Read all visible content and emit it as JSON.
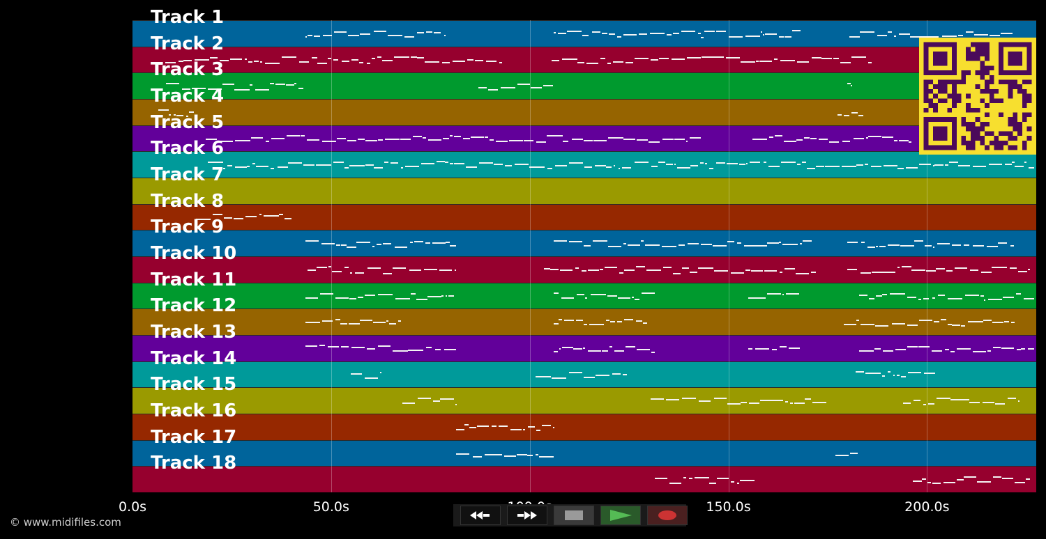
{
  "tracks": [
    {
      "label": "Track 1",
      "color": "#00649b"
    },
    {
      "label": "Track 2",
      "color": "#96002e"
    },
    {
      "label": "Track 3",
      "color": "#009a2e"
    },
    {
      "label": "Track 4",
      "color": "#966400"
    },
    {
      "label": "Track 5",
      "color": "#62009a"
    },
    {
      "label": "Track 6",
      "color": "#009a9a"
    },
    {
      "label": "Track 7",
      "color": "#9a9a00"
    },
    {
      "label": "Track 8",
      "color": "#962800"
    },
    {
      "label": "Track 9",
      "color": "#00649b"
    },
    {
      "label": "Track 10",
      "color": "#96002e"
    },
    {
      "label": "Track 11",
      "color": "#009a2e"
    },
    {
      "label": "Track 12",
      "color": "#966400"
    },
    {
      "label": "Track 13",
      "color": "#62009a"
    },
    {
      "label": "Track 14",
      "color": "#009a9a"
    },
    {
      "label": "Track 15",
      "color": "#9a9a00"
    },
    {
      "label": "Track 16",
      "color": "#962800"
    },
    {
      "label": "Track 17",
      "color": "#00649b"
    },
    {
      "label": "Track 18",
      "color": "#96002e"
    }
  ],
  "time_axis": {
    "ticks": [
      {
        "label": "0.0s",
        "value": 0
      },
      {
        "label": "50.0s",
        "value": 50
      },
      {
        "label": "100.0s",
        "value": 100
      },
      {
        "label": "150.0s",
        "value": 150
      },
      {
        "label": "200.0s",
        "value": 200
      }
    ],
    "max_seconds": 227.5
  },
  "note_regions": [
    {
      "track": 0,
      "segments": [
        [
          43.5,
          78.5
        ],
        [
          106,
          168.5
        ],
        [
          180.5,
          221.5
        ]
      ]
    },
    {
      "track": 1,
      "segments": [
        [
          6,
          93
        ],
        [
          105.5,
          186
        ]
      ]
    },
    {
      "track": 2,
      "segments": [
        [
          8.5,
          43
        ],
        [
          87,
          106
        ],
        [
          180,
          181
        ]
      ]
    },
    {
      "track": 3,
      "segments": [
        [
          6.5,
          15.5
        ],
        [
          177.5,
          184
        ]
      ]
    },
    {
      "track": 4,
      "segments": [
        [
          18.5,
          80.5
        ],
        [
          81,
          143
        ],
        [
          156,
          196
        ]
      ]
    },
    {
      "track": 5,
      "segments": [
        [
          19,
          227
        ]
      ]
    },
    {
      "track": 7,
      "segments": [
        [
          16,
          40
        ]
      ]
    },
    {
      "track": 8,
      "segments": [
        [
          43.5,
          81.5
        ],
        [
          106,
          171
        ],
        [
          180,
          222
        ]
      ]
    },
    {
      "track": 9,
      "segments": [
        [
          44,
          81.5
        ],
        [
          103.5,
          172
        ],
        [
          180,
          226
        ]
      ]
    },
    {
      "track": 10,
      "segments": [
        [
          43.5,
          81.5
        ],
        [
          106,
          131.5
        ],
        [
          155,
          168
        ],
        [
          183,
          227
        ]
      ]
    },
    {
      "track": 11,
      "segments": [
        [
          43.5,
          67.5
        ],
        [
          106,
          129.5
        ],
        [
          179,
          222
        ]
      ]
    },
    {
      "track": 12,
      "segments": [
        [
          43.5,
          81.5
        ],
        [
          106,
          131.5
        ],
        [
          155,
          168
        ],
        [
          183,
          227
        ]
      ]
    },
    {
      "track": 13,
      "segments": [
        [
          55,
          62.5
        ],
        [
          101.5,
          124.5
        ],
        [
          182,
          202
        ]
      ]
    },
    {
      "track": 14,
      "segments": [
        [
          68,
          81.5
        ],
        [
          130.5,
          175
        ],
        [
          194,
          223
        ]
      ]
    },
    {
      "track": 15,
      "segments": [
        [
          81.5,
          106
        ]
      ]
    },
    {
      "track": 16,
      "segments": [
        [
          81.5,
          106
        ],
        [
          177,
          182.5
        ]
      ]
    },
    {
      "track": 17,
      "segments": [
        [
          131.5,
          156.5
        ],
        [
          196.5,
          226
        ]
      ]
    }
  ],
  "controls": [
    {
      "name": "rewind-button",
      "icon": "rewind-icon"
    },
    {
      "name": "fast-forward-button",
      "icon": "fast-forward-icon"
    },
    {
      "name": "stop-button",
      "icon": "stop-icon"
    },
    {
      "name": "play-button",
      "icon": "play-icon"
    },
    {
      "name": "record-button",
      "icon": "record-icon"
    }
  ],
  "qr": {
    "foreground": "#4b0a5a",
    "background": "#f7df2f"
  },
  "copyright": "© www.midifiles.com"
}
